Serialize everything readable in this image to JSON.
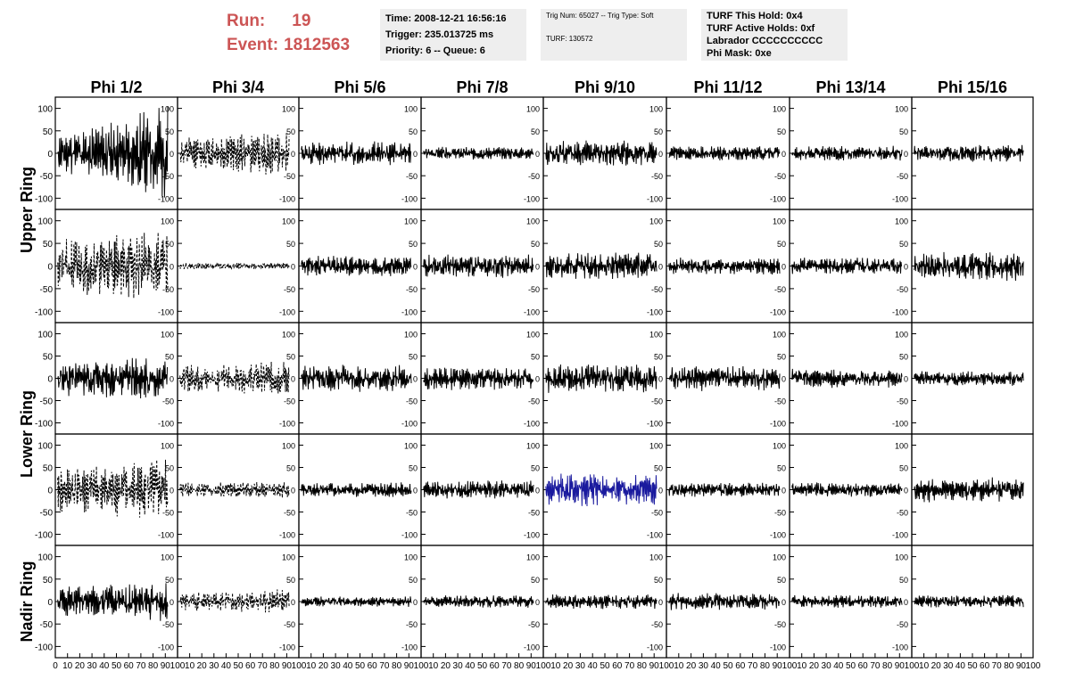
{
  "run": {
    "run_label": "Run:",
    "run_number": "19",
    "event_label": "Event:",
    "event_number": "1812563"
  },
  "time_box": {
    "line1": "Time: 2008-12-21 16:56:16",
    "line2": "Trigger: 235.013725 ms",
    "line3": "Priority: 6 -- Queue: 6"
  },
  "trig_box": {
    "line1": "Trig Num: 65027 -- Trig Type: Soft",
    "line2": "TURF: 130572"
  },
  "turf_box": {
    "line1": "TURF This Hold: 0x4",
    "line2": "TURF Active Holds: 0xf",
    "line3": "Labrador CCCCCCCCCC",
    "line4": "Phi Mask: 0xe"
  },
  "chart_data": {
    "type": "line",
    "columns": [
      "Phi 1/2",
      "Phi 3/4",
      "Phi 5/6",
      "Phi 7/8",
      "Phi 9/10",
      "Phi 11/12",
      "Phi 13/14",
      "Phi 15/16"
    ],
    "rows": [
      "Upper Ring",
      "Lower Ring",
      "Nadir Ring"
    ],
    "xlim": [
      0,
      100
    ],
    "ylim": [
      -125,
      125
    ],
    "x_ticks": [
      "0",
      "10",
      "20",
      "30",
      "40",
      "50",
      "60",
      "70",
      "80",
      "90",
      "100"
    ],
    "y_ticks": [
      "100",
      "50",
      "0",
      "-50",
      "-100"
    ],
    "highlight_color": "#1a1a9e",
    "trace_color": "#000000",
    "panels": [
      {
        "row": 0,
        "col": 0,
        "amp": 38,
        "growth": 1.6,
        "style": "solid",
        "seed": 11
      },
      {
        "row": 0,
        "col": 1,
        "amp": 30,
        "growth": 0.6,
        "style": "dashed",
        "seed": 12
      },
      {
        "row": 0,
        "col": 2,
        "amp": 22,
        "growth": 0.1,
        "style": "solid",
        "seed": 13
      },
      {
        "row": 0,
        "col": 3,
        "amp": 12,
        "growth": 0.0,
        "style": "solid",
        "seed": 14
      },
      {
        "row": 0,
        "col": 4,
        "amp": 24,
        "growth": 0.0,
        "style": "solid",
        "seed": 15
      },
      {
        "row": 0,
        "col": 5,
        "amp": 14,
        "growth": 0.0,
        "style": "solid",
        "seed": 16
      },
      {
        "row": 0,
        "col": 6,
        "amp": 14,
        "growth": 0.0,
        "style": "solid",
        "seed": 17
      },
      {
        "row": 0,
        "col": 7,
        "amp": 16,
        "growth": 0.0,
        "style": "solid",
        "seed": 18
      },
      {
        "row": 1,
        "col": 0,
        "amp": 52,
        "growth": 0.4,
        "style": "dashed",
        "seed": 21
      },
      {
        "row": 1,
        "col": 1,
        "amp": 6,
        "growth": 0.0,
        "style": "dashed",
        "seed": 22
      },
      {
        "row": 1,
        "col": 2,
        "amp": 20,
        "growth": 0.0,
        "style": "solid",
        "seed": 23
      },
      {
        "row": 1,
        "col": 3,
        "amp": 22,
        "growth": 0.0,
        "style": "solid",
        "seed": 24
      },
      {
        "row": 1,
        "col": 4,
        "amp": 24,
        "growth": 0.1,
        "style": "solid",
        "seed": 25
      },
      {
        "row": 1,
        "col": 5,
        "amp": 16,
        "growth": 0.0,
        "style": "solid",
        "seed": 26
      },
      {
        "row": 1,
        "col": 6,
        "amp": 16,
        "growth": 0.0,
        "style": "solid",
        "seed": 27
      },
      {
        "row": 1,
        "col": 7,
        "amp": 26,
        "growth": 0.2,
        "style": "solid",
        "seed": 28
      },
      {
        "row": 2,
        "col": 0,
        "amp": 34,
        "growth": 0.3,
        "style": "solid",
        "seed": 31
      },
      {
        "row": 2,
        "col": 1,
        "amp": 26,
        "growth": 0.3,
        "style": "dashed",
        "seed": 32
      },
      {
        "row": 2,
        "col": 2,
        "amp": 26,
        "growth": 0.0,
        "style": "solid",
        "seed": 33
      },
      {
        "row": 2,
        "col": 3,
        "amp": 22,
        "growth": 0.0,
        "style": "solid",
        "seed": 34
      },
      {
        "row": 2,
        "col": 4,
        "amp": 28,
        "growth": 0.0,
        "style": "solid",
        "seed": 35
      },
      {
        "row": 2,
        "col": 5,
        "amp": 24,
        "growth": 0.0,
        "style": "solid",
        "seed": 36
      },
      {
        "row": 2,
        "col": 6,
        "amp": 18,
        "growth": 0.0,
        "style": "solid",
        "seed": 37
      },
      {
        "row": 2,
        "col": 7,
        "amp": 14,
        "growth": 0.0,
        "style": "solid",
        "seed": 38
      },
      {
        "row": 3,
        "col": 0,
        "amp": 50,
        "growth": 0.2,
        "style": "dashed",
        "seed": 41
      },
      {
        "row": 3,
        "col": 1,
        "amp": 16,
        "growth": 0.0,
        "style": "dashed",
        "seed": 42
      },
      {
        "row": 3,
        "col": 2,
        "amp": 14,
        "growth": 0.0,
        "style": "solid",
        "seed": 43
      },
      {
        "row": 3,
        "col": 3,
        "amp": 18,
        "growth": 0.0,
        "style": "solid",
        "seed": 44
      },
      {
        "row": 3,
        "col": 4,
        "amp": 32,
        "growth": 0.0,
        "style": "solid",
        "color": "blue",
        "seed": 45
      },
      {
        "row": 3,
        "col": 5,
        "amp": 14,
        "growth": 0.0,
        "style": "solid",
        "seed": 46
      },
      {
        "row": 3,
        "col": 6,
        "amp": 14,
        "growth": 0.0,
        "style": "solid",
        "seed": 47
      },
      {
        "row": 3,
        "col": 7,
        "amp": 24,
        "growth": 0.0,
        "style": "solid",
        "seed": 48
      },
      {
        "row": 4,
        "col": 0,
        "amp": 28,
        "growth": 0.4,
        "style": "solid",
        "seed": 51
      },
      {
        "row": 4,
        "col": 1,
        "amp": 18,
        "growth": 0.3,
        "style": "dashed",
        "seed": 52
      },
      {
        "row": 4,
        "col": 2,
        "amp": 10,
        "growth": 0.0,
        "style": "solid",
        "seed": 53
      },
      {
        "row": 4,
        "col": 3,
        "amp": 12,
        "growth": 0.0,
        "style": "solid",
        "seed": 54
      },
      {
        "row": 4,
        "col": 4,
        "amp": 14,
        "growth": 0.0,
        "style": "solid",
        "seed": 55
      },
      {
        "row": 4,
        "col": 5,
        "amp": 16,
        "growth": 0.0,
        "style": "solid",
        "seed": 56
      },
      {
        "row": 4,
        "col": 6,
        "amp": 12,
        "growth": 0.0,
        "style": "solid",
        "seed": 57
      },
      {
        "row": 4,
        "col": 7,
        "amp": 12,
        "growth": 0.0,
        "style": "solid",
        "seed": 58
      }
    ]
  }
}
